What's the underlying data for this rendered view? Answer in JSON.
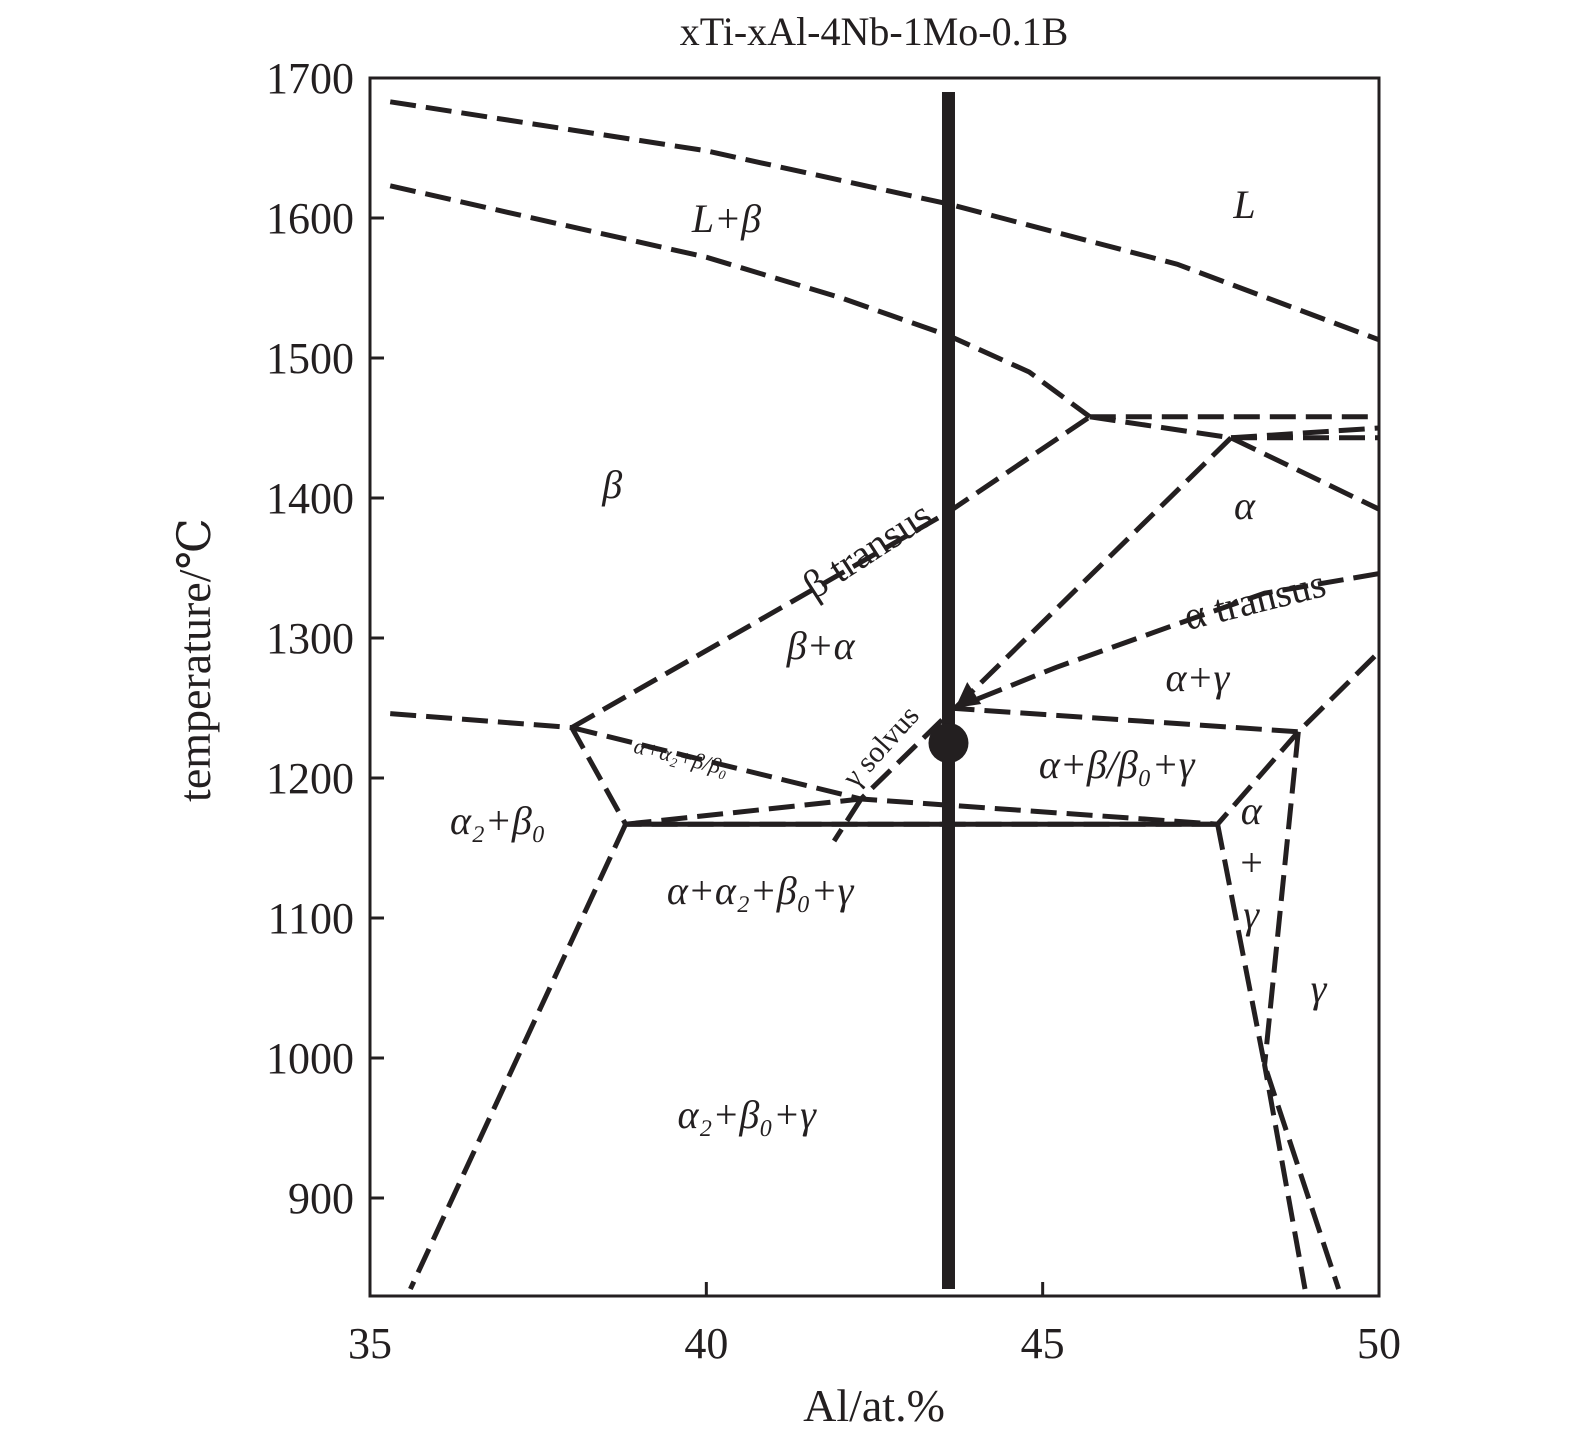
{
  "chart_data": {
    "type": "line",
    "title": "xTi-xAl-4Nb-1Mo-0.1B",
    "xlabel": "Al/at.%",
    "ylabel": "temperature/℃",
    "xlim": [
      35,
      50
    ],
    "ylim": [
      830,
      1700
    ],
    "xticks": [
      "35",
      "40",
      "45",
      "50"
    ],
    "yticks": [
      "900",
      "1000",
      "1100",
      "1200",
      "1300",
      "1400",
      "1500",
      "1600",
      "1700"
    ],
    "grid": false,
    "legend": "none",
    "phase_boundaries": [
      {
        "style": "dashed",
        "points": [
          [
            35.3,
            1683
          ],
          [
            40,
            1648
          ],
          [
            43.6,
            1610
          ],
          [
            47,
            1567
          ],
          [
            50,
            1513
          ]
        ]
      },
      {
        "style": "dashed",
        "points": [
          [
            35.3,
            1623
          ],
          [
            40,
            1572
          ],
          [
            42,
            1543
          ],
          [
            43.6,
            1516
          ],
          [
            44.8,
            1490
          ],
          [
            45.7,
            1458
          ]
        ]
      },
      {
        "style": "dashed",
        "points": [
          [
            38.0,
            1236
          ],
          [
            43.6,
            1390
          ],
          [
            45.7,
            1458
          ]
        ]
      },
      {
        "style": "dashed",
        "points": [
          [
            45.7,
            1458
          ],
          [
            50,
            1458
          ]
        ]
      },
      {
        "style": "dashed",
        "points": [
          [
            45.7,
            1458
          ],
          [
            47.8,
            1443
          ],
          [
            50,
            1392
          ]
        ]
      },
      {
        "style": "dashed",
        "points": [
          [
            47.8,
            1443
          ],
          [
            50,
            1443
          ]
        ]
      },
      {
        "style": "dashed",
        "points": [
          [
            47.8,
            1443
          ],
          [
            50,
            1450
          ]
        ]
      },
      {
        "style": "dashed",
        "points": [
          [
            47.8,
            1443
          ],
          [
            43.7,
            1250
          ]
        ]
      },
      {
        "style": "dashed",
        "points": [
          [
            50,
            1346
          ],
          [
            48.3,
            1332
          ],
          [
            47,
            1310
          ],
          [
            45.2,
            1279
          ],
          [
            43.7,
            1250
          ]
        ]
      },
      {
        "style": "dashed",
        "points": [
          [
            43.6,
            1250
          ],
          [
            48.8,
            1233
          ],
          [
            50,
            1290
          ]
        ]
      },
      {
        "style": "dashed",
        "points": [
          [
            35.3,
            1246
          ],
          [
            38.0,
            1236
          ],
          [
            38.8,
            1167
          ]
        ]
      },
      {
        "style": "dashed",
        "points": [
          [
            38.0,
            1236
          ],
          [
            42.3,
            1185
          ],
          [
            47.6,
            1167
          ]
        ]
      },
      {
        "style": "dashed",
        "points": [
          [
            38.8,
            1167
          ],
          [
            42.3,
            1185
          ],
          [
            43.6,
            1246
          ]
        ]
      },
      {
        "style": "dashed",
        "points": [
          [
            42.3,
            1185
          ],
          [
            41.9,
            1155
          ]
        ]
      },
      {
        "style": "dashed",
        "points": [
          [
            47.6,
            1167
          ],
          [
            43.6,
            1167
          ],
          [
            38.8,
            1167
          ]
        ]
      },
      {
        "style": "dashed",
        "points": [
          [
            48.8,
            1233
          ],
          [
            47.6,
            1167
          ]
        ]
      },
      {
        "style": "dashed",
        "points": [
          [
            38.8,
            1167
          ],
          [
            35.6,
            835
          ]
        ]
      },
      {
        "style": "dashed",
        "points": [
          [
            47.6,
            1167
          ],
          [
            48.3,
            995
          ],
          [
            49.4,
            835
          ]
        ]
      },
      {
        "style": "dashed",
        "points": [
          [
            48.8,
            1233
          ],
          [
            48.3,
            995
          ],
          [
            48.9,
            835
          ]
        ]
      },
      {
        "style": "solid",
        "points": [
          [
            38.8,
            1167
          ],
          [
            47.6,
            1167
          ]
        ]
      }
    ],
    "composition_line": {
      "al": 43.6,
      "from": 835,
      "to": 1690
    },
    "marked_point": {
      "al": 43.6,
      "temperature": 1225
    },
    "phase_regions": [
      {
        "label": "L",
        "x": 48.0,
        "y": 1600
      },
      {
        "label": "L+β",
        "x": 40.3,
        "y": 1590
      },
      {
        "label": "β",
        "x": 38.6,
        "y": 1400
      },
      {
        "label": "α",
        "x": 48.0,
        "y": 1385
      },
      {
        "label": "β+α",
        "x": 41.7,
        "y": 1285
      },
      {
        "label": "α+γ",
        "x": 47.3,
        "y": 1262
      },
      {
        "label": "α+β/β₀+γ",
        "x": 46.1,
        "y": 1200
      },
      {
        "label": "α+α₂+β/β₀",
        "x": 39.6,
        "y": 1210
      },
      {
        "label": "α₂+β₀",
        "x": 36.9,
        "y": 1160
      },
      {
        "label": "α+α₂+β₀+γ",
        "x": 40.8,
        "y": 1110
      },
      {
        "label": "α₂+β₀+γ",
        "x": 40.6,
        "y": 950
      },
      {
        "label": "γ",
        "x": 49.1,
        "y": 1040
      },
      {
        "label": "α",
        "x": 48.1,
        "y": 1167
      },
      {
        "label": "+",
        "x": 48.1,
        "y": 1130
      },
      {
        "label": "γ",
        "x": 48.1,
        "y": 1093
      }
    ],
    "annotations": [
      {
        "text": "β transus",
        "x": 42.5,
        "y": 1355,
        "angle": -33
      },
      {
        "text": "α transus",
        "x": 48.2,
        "y": 1318,
        "angle": -14
      },
      {
        "text": "γ solvus",
        "x": 42.7,
        "y": 1218,
        "angle": -48
      }
    ]
  }
}
